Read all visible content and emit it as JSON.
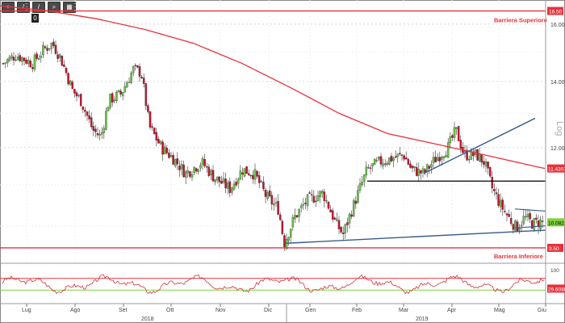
{
  "toolbar": {
    "tools": [
      {
        "name": "crosshair-tool",
        "glyph": "+"
      },
      {
        "name": "pen-tool",
        "glyph": "/"
      },
      {
        "name": "line-tool",
        "glyph": "/"
      },
      {
        "name": "zoom-tool",
        "glyph": "⌕"
      },
      {
        "name": "grid-tool",
        "glyph": "▦"
      }
    ],
    "badge": "0"
  },
  "chart_data": [
    {
      "type": "candlestick",
      "scale_label": "Log",
      "y_scale": "log",
      "ylim": [
        9.2,
        16.8
      ],
      "yticks": [
        "16.00",
        "14.00",
        "12.00"
      ],
      "x_axis": {
        "months": [
          "Lug",
          "Ago",
          "Set",
          "Ott",
          "Nov",
          "Dic",
          "Gen",
          "Feb",
          "Mar",
          "Apr",
          "Mag",
          "Giu"
        ],
        "years": [
          "2018",
          "2019"
        ]
      },
      "horizontal_levels": [
        {
          "label": "Barriera Superiore",
          "value": 16.5,
          "tag": "16.50",
          "color": "#e8323c"
        },
        {
          "label": "Barriera Inferiore",
          "value": 9.5,
          "tag": "9.50",
          "color": "#e8323c"
        }
      ],
      "price_tags": [
        {
          "value": 11.4307,
          "tag": "11.4307",
          "color": "#e8323c"
        },
        {
          "value": 10.082,
          "tag": "10.082",
          "color": "#7fd23c"
        }
      ],
      "moving_average": {
        "color": "#e8323c",
        "points": [
          [
            0,
            16.7
          ],
          [
            60,
            16.5
          ],
          [
            120,
            16.2
          ],
          [
            180,
            15.8
          ],
          [
            240,
            15.3
          ],
          [
            300,
            14.6
          ],
          [
            360,
            13.8
          ],
          [
            420,
            13.0
          ],
          [
            480,
            12.4
          ],
          [
            540,
            12.1
          ],
          [
            600,
            11.8
          ],
          [
            660,
            11.5
          ],
          [
            675,
            11.43
          ]
        ]
      },
      "support_line": {
        "color": "#3a5b8c",
        "from": [
          352,
          9.6
        ],
        "to": [
          676,
          9.9
        ]
      },
      "uptrend_line": {
        "color": "#3a5b8c",
        "from": [
          525,
          11.3
        ],
        "to": [
          663,
          12.85
        ]
      },
      "neckline": {
        "color": "#000000",
        "from": [
          455,
          11.1
        ],
        "to": [
          676,
          11.1
        ]
      },
      "flag_lines": [
        {
          "color": "#3a5b8c",
          "from": [
            638,
            10.4
          ],
          "to": [
            676,
            10.35
          ]
        },
        {
          "color": "#3a5b8c",
          "from": [
            638,
            9.95
          ],
          "to": [
            676,
            10.0
          ]
        }
      ]
    },
    {
      "type": "line",
      "panel": "oscillator",
      "ylim": [
        0,
        100
      ],
      "yticks": [
        "100"
      ],
      "value_tag": "29.6088",
      "levels": [
        {
          "value": 70,
          "color": "#e8323c"
        },
        {
          "value": 30,
          "color": "#7fd23c"
        }
      ],
      "line_color": "#d0303a"
    }
  ]
}
